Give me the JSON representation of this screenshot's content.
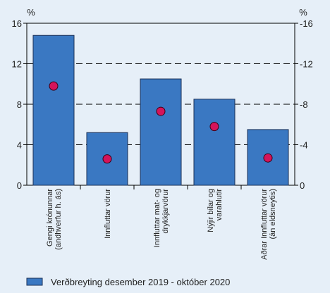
{
  "chart_data": {
    "type": "bar",
    "left_unit": "%",
    "right_unit": "%",
    "ylim": [
      0,
      16
    ],
    "yticks": [
      0,
      4,
      8,
      12,
      16
    ],
    "left_tick_labels": [
      "0",
      "4",
      "8",
      "12",
      "16"
    ],
    "right_tick_labels": [
      "0",
      "-4",
      "-8",
      "-12",
      "-16"
    ],
    "grid": "dashed horizontal at 4, 8, 12",
    "categories": [
      [
        "Gengi krónunnar",
        "(andhverfur h. ás)"
      ],
      [
        "Innfluttar vörur"
      ],
      [
        "Innfluttar mat- og",
        "drykkjarvörur"
      ],
      [
        "Nýjir bílar og",
        "varahlutir"
      ],
      [
        "Aðrar Innfluttar vörur",
        "(án eldsneytis)"
      ]
    ],
    "series": [
      {
        "name": "Verðbreyting desember 2019 - október 2020",
        "marker": "bar",
        "values": [
          14.8,
          5.2,
          10.5,
          8.5,
          5.5
        ],
        "color": "#3a78c2"
      },
      {
        "name": "",
        "marker": "dot",
        "values": [
          9.8,
          2.6,
          7.3,
          5.8,
          2.7
        ],
        "color": "#d4145a"
      }
    ],
    "legend": {
      "position": "bottom-left"
    },
    "colors": {
      "background": "#e6eff8",
      "bar_stroke": "#1a2f55"
    }
  }
}
